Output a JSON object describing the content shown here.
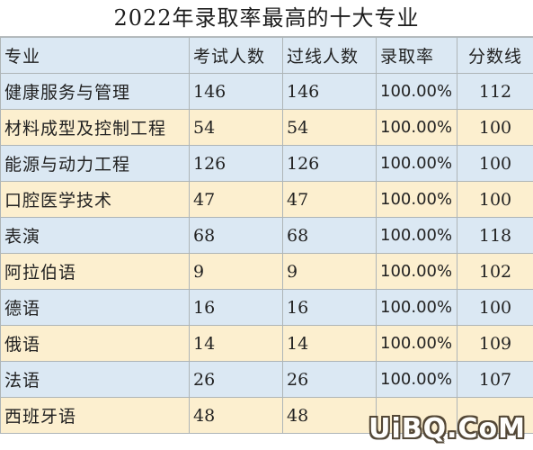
{
  "title": "2022年录取率最高的十大专业",
  "table": {
    "headers": [
      "专业",
      "考试人数",
      "过线人数",
      "录取率",
      "分数线"
    ],
    "rows": [
      {
        "major": "健康服务与管理",
        "examinees": "146",
        "passed": "146",
        "rate": "100.00%",
        "score": "112"
      },
      {
        "major": "材料成型及控制工程",
        "examinees": "54",
        "passed": "54",
        "rate": "100.00%",
        "score": "100"
      },
      {
        "major": "能源与动力工程",
        "examinees": "126",
        "passed": "126",
        "rate": "100.00%",
        "score": "100"
      },
      {
        "major": "口腔医学技术",
        "examinees": "47",
        "passed": "47",
        "rate": "100.00%",
        "score": "100"
      },
      {
        "major": "表演",
        "examinees": "68",
        "passed": "68",
        "rate": "100.00%",
        "score": "118"
      },
      {
        "major": "阿拉伯语",
        "examinees": "9",
        "passed": "9",
        "rate": "100.00%",
        "score": "102"
      },
      {
        "major": "德语",
        "examinees": "16",
        "passed": "16",
        "rate": "100.00%",
        "score": "100"
      },
      {
        "major": "俄语",
        "examinees": "14",
        "passed": "14",
        "rate": "100.00%",
        "score": "109"
      },
      {
        "major": "法语",
        "examinees": "26",
        "passed": "26",
        "rate": "100.00%",
        "score": "107"
      },
      {
        "major": "西班牙语",
        "examinees": "48",
        "passed": "48",
        "rate": "",
        "score": ""
      }
    ]
  },
  "watermark": "UiBQ.CoM",
  "colors": {
    "row_blue": "#dbe8f3",
    "row_cream": "#fcefcf",
    "grid": "#aeb5b7"
  }
}
